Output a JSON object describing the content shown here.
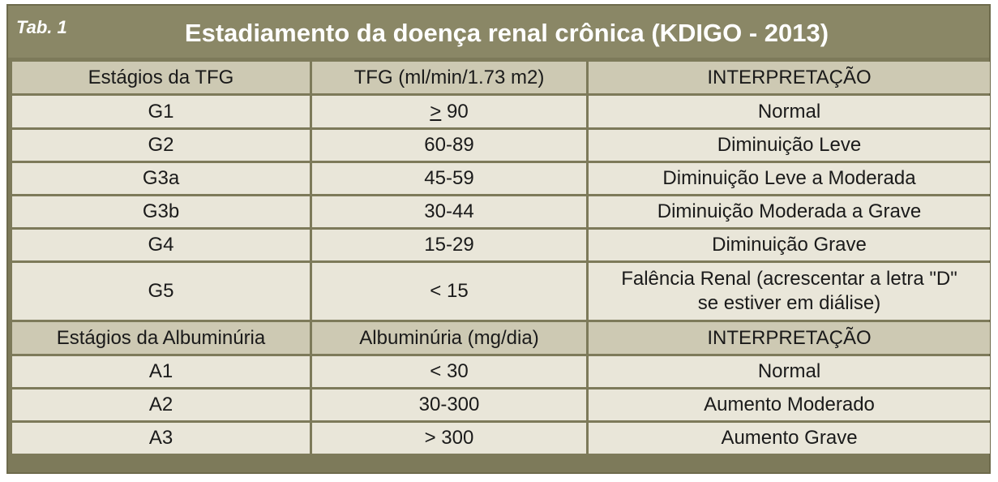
{
  "title": {
    "tab": "Tab. 1",
    "text": "Estadiamento da doença renal crônica (KDIGO - 2013)"
  },
  "tfg_section": {
    "headers": [
      "Estágios da TFG",
      "TFG (ml/min/1.73 m2)",
      "INTERPRETAÇÃO"
    ],
    "rows": [
      {
        "stage": "G1",
        "value_symbol": ">",
        "value": " 90",
        "interpretation": "Normal"
      },
      {
        "stage": "G2",
        "value": "60-89",
        "interpretation": "Diminuição Leve"
      },
      {
        "stage": "G3a",
        "value": "45-59",
        "interpretation": "Diminuição Leve a Moderada"
      },
      {
        "stage": "G3b",
        "value": "30-44",
        "interpretation": "Diminuição Moderada a Grave"
      },
      {
        "stage": "G4",
        "value": "15-29",
        "interpretation": "Diminuição Grave"
      },
      {
        "stage": "G5",
        "value": "< 15",
        "interpretation_line1": "Falência Renal (acrescentar a letra \"D\"",
        "interpretation_line2": "se estiver em diálise)"
      }
    ]
  },
  "albumin_section": {
    "headers": [
      "Estágios da Albuminúria",
      "Albuminúria (mg/dia)",
      "INTERPRETAÇÃO"
    ],
    "rows": [
      {
        "stage": "A1",
        "value": "< 30",
        "interpretation": "Normal"
      },
      {
        "stage": "A2",
        "value": "30-300",
        "interpretation": "Aumento Moderado"
      },
      {
        "stage": "A3",
        "value": "> 300",
        "interpretation": "Aumento Grave"
      }
    ]
  },
  "colors": {
    "frame": "#7d7a5a",
    "title_bar": "#8a8766",
    "header_cell": "#cdc9b3",
    "data_cell": "#e9e6d9"
  }
}
